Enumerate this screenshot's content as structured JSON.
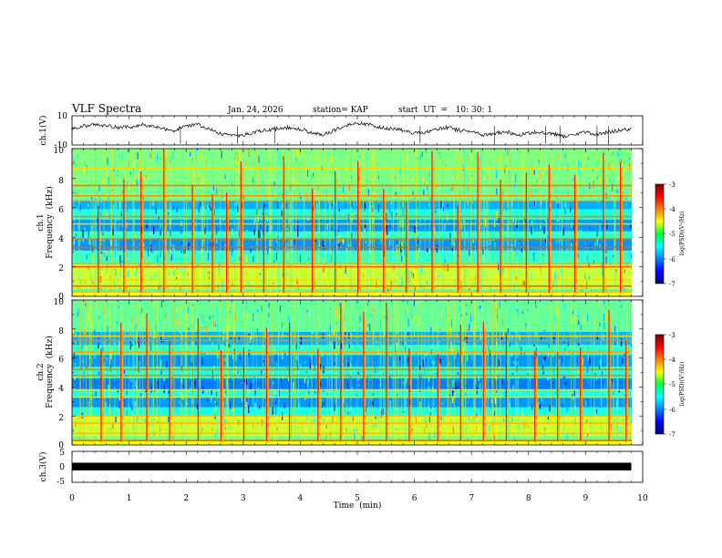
{
  "header": {
    "title": "VLF Spectra",
    "date": "Jan. 24, 2026",
    "station": "station= KAP",
    "start_time": "start  UT  =   10: 30: 1"
  },
  "chart_data": [
    {
      "type": "line",
      "name": "channel-1-waveform",
      "ylabel": "ch.1(V)",
      "ylim": [
        -10,
        10
      ],
      "yticks": [
        "10",
        "-10"
      ],
      "xlim": [
        0,
        10
      ],
      "samples_minutes": [
        0,
        0.2,
        0.4,
        0.6,
        0.8,
        1.0,
        1.2,
        1.4,
        1.6,
        1.8,
        2.0,
        2.2,
        2.4,
        2.6,
        2.8,
        3.0,
        3.2,
        3.4,
        3.6,
        3.8,
        4.0,
        4.2,
        4.4,
        4.6,
        4.8,
        5.0,
        5.2,
        5.4,
        5.6,
        5.8,
        6.0,
        6.2,
        6.4,
        6.6,
        6.8,
        7.0,
        7.2,
        7.4,
        7.6,
        7.8,
        8.0,
        8.2,
        8.4,
        8.6,
        8.8,
        9.0,
        9.2,
        9.4,
        9.6,
        9.8
      ],
      "values": [
        1,
        3,
        4,
        3,
        2,
        2,
        4,
        3,
        1,
        0,
        3,
        4,
        1,
        -2,
        -4,
        -3,
        -1,
        0,
        1,
        2,
        1,
        -2,
        -3,
        0,
        3,
        5,
        4,
        2,
        1,
        0,
        -2,
        -1,
        1,
        2,
        0,
        -1,
        -3,
        -2,
        -1,
        -3,
        -2,
        -1,
        -2,
        -4,
        -3,
        -1,
        -3,
        -1,
        0,
        1
      ]
    },
    {
      "type": "heatmap",
      "name": "channel-1-spectrogram",
      "ylabel_line1": "ch.1",
      "ylabel_line2": "Frequency  (kHz)",
      "ylim_khz": [
        0,
        10
      ],
      "yticks": [
        "0",
        "2",
        "4",
        "6",
        "8",
        "10"
      ],
      "xlim": [
        0,
        10
      ],
      "value_label": "log(PSD)(V²/Hz)",
      "value_range": [
        -7,
        -3
      ],
      "background_bands_khz": [
        {
          "from": 0,
          "to": 0.5,
          "level": -5.2
        },
        {
          "from": 0.5,
          "to": 2.2,
          "level": -4.7
        },
        {
          "from": 2.2,
          "to": 3.1,
          "level": -5.3
        },
        {
          "from": 3.1,
          "to": 3.9,
          "level": -5.9
        },
        {
          "from": 3.9,
          "to": 4.4,
          "level": -5.3
        },
        {
          "from": 4.4,
          "to": 5.2,
          "level": -5.9
        },
        {
          "from": 5.2,
          "to": 5.9,
          "level": -5.4
        },
        {
          "from": 5.9,
          "to": 6.5,
          "level": -5.8
        },
        {
          "from": 6.5,
          "to": 7.4,
          "level": -5.1
        },
        {
          "from": 7.4,
          "to": 10,
          "level": -5.0
        }
      ],
      "tone_lines_khz": [
        0.3,
        0.7,
        1.1,
        2.0,
        2.2,
        3.3,
        3.9,
        4.9,
        5.4,
        6.5,
        6.8,
        7.5,
        8.7
      ],
      "bursts_minutes": [
        0.45,
        0.9,
        1.2,
        1.6,
        2.1,
        2.45,
        2.7,
        2.95,
        3.35,
        3.7,
        4.2,
        4.6,
        5.0,
        5.45,
        5.85,
        6.3,
        6.75,
        7.1,
        7.5,
        7.95,
        8.35,
        8.8,
        9.3,
        9.6
      ]
    },
    {
      "type": "heatmap",
      "name": "channel-2-spectrogram",
      "ylabel_line1": "ch.2",
      "ylabel_line2": "Frequency  (kHz)",
      "ylim_khz": [
        0,
        10
      ],
      "yticks": [
        "0",
        "2",
        "4",
        "6",
        "8",
        "10"
      ],
      "xlim": [
        0,
        10
      ],
      "value_label": "log(PSD)(V²/Hz)",
      "value_range": [
        -7,
        -3
      ],
      "background_bands_khz": [
        {
          "from": 0,
          "to": 0.6,
          "level": -5.1
        },
        {
          "from": 0.6,
          "to": 2.0,
          "level": -4.7
        },
        {
          "from": 2.0,
          "to": 2.6,
          "level": -5.4
        },
        {
          "from": 2.6,
          "to": 3.3,
          "level": -5.9
        },
        {
          "from": 3.3,
          "to": 3.8,
          "level": -5.4
        },
        {
          "from": 3.8,
          "to": 4.6,
          "level": -6.0
        },
        {
          "from": 4.6,
          "to": 5.4,
          "level": -5.4
        },
        {
          "from": 5.4,
          "to": 6.2,
          "level": -5.9
        },
        {
          "from": 6.2,
          "to": 6.9,
          "level": -5.3
        },
        {
          "from": 6.9,
          "to": 7.8,
          "level": -5.8
        },
        {
          "from": 7.8,
          "to": 10,
          "level": -5.1
        }
      ],
      "tone_lines_khz": [
        0.3,
        0.8,
        1.5,
        2.0,
        3.3,
        3.8,
        4.8,
        5.2,
        6.4,
        7.2,
        7.5
      ],
      "bursts_minutes": [
        0.5,
        0.85,
        1.3,
        1.7,
        2.2,
        2.6,
        3.0,
        3.4,
        3.8,
        4.3,
        4.7,
        5.1,
        5.5,
        5.9,
        6.4,
        6.8,
        7.2,
        7.6,
        8.1,
        8.5,
        8.9,
        9.4,
        9.7
      ]
    },
    {
      "type": "line",
      "name": "channel-3-waveform",
      "ylabel": "ch.3(V)",
      "ylim": [
        -5,
        5
      ],
      "yticks": [
        "5",
        "0",
        "-5"
      ],
      "xlim": [
        0,
        10
      ],
      "band": [
        -0.4,
        0.6
      ]
    }
  ],
  "colorbar": {
    "label": "log(PSD)(V²/Hz)",
    "ticks": [
      "-3",
      "-4",
      "-5",
      "-6",
      "-7"
    ],
    "tick_values": [
      -3,
      -4,
      -5,
      -6,
      -7
    ],
    "min": -7,
    "max": -3
  },
  "x_axis": {
    "label": "Time  (min)",
    "ticks": [
      "0",
      "1",
      "2",
      "3",
      "4",
      "5",
      "6",
      "7",
      "8",
      "9",
      "10"
    ]
  }
}
